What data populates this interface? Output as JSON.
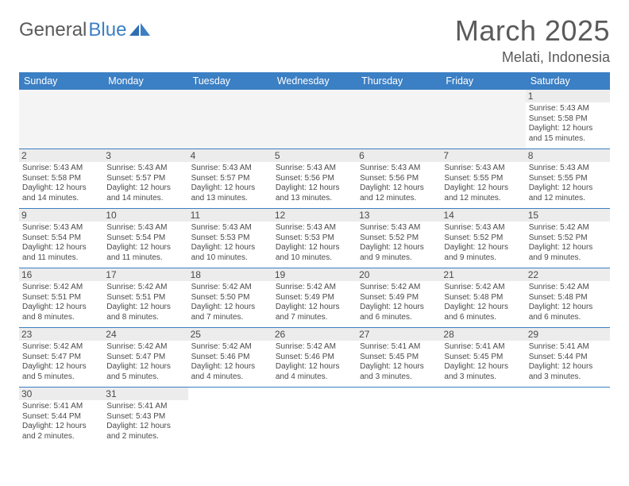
{
  "brand": {
    "general": "General",
    "blue": "Blue"
  },
  "header": {
    "month_title": "March 2025",
    "location": "Melati, Indonesia"
  },
  "colors": {
    "header_bar": "#3b7fc4",
    "header_text": "#ffffff",
    "daynum_bg": "#ececec",
    "cell_border": "#3b7fc4",
    "body_text": "#4a4a4a",
    "lead_empty_bg": "#f4f4f4"
  },
  "dayHeaders": [
    "Sunday",
    "Monday",
    "Tuesday",
    "Wednesday",
    "Thursday",
    "Friday",
    "Saturday"
  ],
  "weeks": [
    [
      {
        "empty": true,
        "lead": true
      },
      {
        "empty": true,
        "lead": true
      },
      {
        "empty": true,
        "lead": true
      },
      {
        "empty": true,
        "lead": true
      },
      {
        "empty": true,
        "lead": true
      },
      {
        "empty": true,
        "lead": true
      },
      {
        "day": "1",
        "sunrise": "Sunrise: 5:43 AM",
        "sunset": "Sunset: 5:58 PM",
        "daylight1": "Daylight: 12 hours",
        "daylight2": "and 15 minutes."
      }
    ],
    [
      {
        "day": "2",
        "sunrise": "Sunrise: 5:43 AM",
        "sunset": "Sunset: 5:58 PM",
        "daylight1": "Daylight: 12 hours",
        "daylight2": "and 14 minutes."
      },
      {
        "day": "3",
        "sunrise": "Sunrise: 5:43 AM",
        "sunset": "Sunset: 5:57 PM",
        "daylight1": "Daylight: 12 hours",
        "daylight2": "and 14 minutes."
      },
      {
        "day": "4",
        "sunrise": "Sunrise: 5:43 AM",
        "sunset": "Sunset: 5:57 PM",
        "daylight1": "Daylight: 12 hours",
        "daylight2": "and 13 minutes."
      },
      {
        "day": "5",
        "sunrise": "Sunrise: 5:43 AM",
        "sunset": "Sunset: 5:56 PM",
        "daylight1": "Daylight: 12 hours",
        "daylight2": "and 13 minutes."
      },
      {
        "day": "6",
        "sunrise": "Sunrise: 5:43 AM",
        "sunset": "Sunset: 5:56 PM",
        "daylight1": "Daylight: 12 hours",
        "daylight2": "and 12 minutes."
      },
      {
        "day": "7",
        "sunrise": "Sunrise: 5:43 AM",
        "sunset": "Sunset: 5:55 PM",
        "daylight1": "Daylight: 12 hours",
        "daylight2": "and 12 minutes."
      },
      {
        "day": "8",
        "sunrise": "Sunrise: 5:43 AM",
        "sunset": "Sunset: 5:55 PM",
        "daylight1": "Daylight: 12 hours",
        "daylight2": "and 12 minutes."
      }
    ],
    [
      {
        "day": "9",
        "sunrise": "Sunrise: 5:43 AM",
        "sunset": "Sunset: 5:54 PM",
        "daylight1": "Daylight: 12 hours",
        "daylight2": "and 11 minutes."
      },
      {
        "day": "10",
        "sunrise": "Sunrise: 5:43 AM",
        "sunset": "Sunset: 5:54 PM",
        "daylight1": "Daylight: 12 hours",
        "daylight2": "and 11 minutes."
      },
      {
        "day": "11",
        "sunrise": "Sunrise: 5:43 AM",
        "sunset": "Sunset: 5:53 PM",
        "daylight1": "Daylight: 12 hours",
        "daylight2": "and 10 minutes."
      },
      {
        "day": "12",
        "sunrise": "Sunrise: 5:43 AM",
        "sunset": "Sunset: 5:53 PM",
        "daylight1": "Daylight: 12 hours",
        "daylight2": "and 10 minutes."
      },
      {
        "day": "13",
        "sunrise": "Sunrise: 5:43 AM",
        "sunset": "Sunset: 5:52 PM",
        "daylight1": "Daylight: 12 hours",
        "daylight2": "and 9 minutes."
      },
      {
        "day": "14",
        "sunrise": "Sunrise: 5:43 AM",
        "sunset": "Sunset: 5:52 PM",
        "daylight1": "Daylight: 12 hours",
        "daylight2": "and 9 minutes."
      },
      {
        "day": "15",
        "sunrise": "Sunrise: 5:42 AM",
        "sunset": "Sunset: 5:52 PM",
        "daylight1": "Daylight: 12 hours",
        "daylight2": "and 9 minutes."
      }
    ],
    [
      {
        "day": "16",
        "sunrise": "Sunrise: 5:42 AM",
        "sunset": "Sunset: 5:51 PM",
        "daylight1": "Daylight: 12 hours",
        "daylight2": "and 8 minutes."
      },
      {
        "day": "17",
        "sunrise": "Sunrise: 5:42 AM",
        "sunset": "Sunset: 5:51 PM",
        "daylight1": "Daylight: 12 hours",
        "daylight2": "and 8 minutes."
      },
      {
        "day": "18",
        "sunrise": "Sunrise: 5:42 AM",
        "sunset": "Sunset: 5:50 PM",
        "daylight1": "Daylight: 12 hours",
        "daylight2": "and 7 minutes."
      },
      {
        "day": "19",
        "sunrise": "Sunrise: 5:42 AM",
        "sunset": "Sunset: 5:49 PM",
        "daylight1": "Daylight: 12 hours",
        "daylight2": "and 7 minutes."
      },
      {
        "day": "20",
        "sunrise": "Sunrise: 5:42 AM",
        "sunset": "Sunset: 5:49 PM",
        "daylight1": "Daylight: 12 hours",
        "daylight2": "and 6 minutes."
      },
      {
        "day": "21",
        "sunrise": "Sunrise: 5:42 AM",
        "sunset": "Sunset: 5:48 PM",
        "daylight1": "Daylight: 12 hours",
        "daylight2": "and 6 minutes."
      },
      {
        "day": "22",
        "sunrise": "Sunrise: 5:42 AM",
        "sunset": "Sunset: 5:48 PM",
        "daylight1": "Daylight: 12 hours",
        "daylight2": "and 6 minutes."
      }
    ],
    [
      {
        "day": "23",
        "sunrise": "Sunrise: 5:42 AM",
        "sunset": "Sunset: 5:47 PM",
        "daylight1": "Daylight: 12 hours",
        "daylight2": "and 5 minutes."
      },
      {
        "day": "24",
        "sunrise": "Sunrise: 5:42 AM",
        "sunset": "Sunset: 5:47 PM",
        "daylight1": "Daylight: 12 hours",
        "daylight2": "and 5 minutes."
      },
      {
        "day": "25",
        "sunrise": "Sunrise: 5:42 AM",
        "sunset": "Sunset: 5:46 PM",
        "daylight1": "Daylight: 12 hours",
        "daylight2": "and 4 minutes."
      },
      {
        "day": "26",
        "sunrise": "Sunrise: 5:42 AM",
        "sunset": "Sunset: 5:46 PM",
        "daylight1": "Daylight: 12 hours",
        "daylight2": "and 4 minutes."
      },
      {
        "day": "27",
        "sunrise": "Sunrise: 5:41 AM",
        "sunset": "Sunset: 5:45 PM",
        "daylight1": "Daylight: 12 hours",
        "daylight2": "and 3 minutes."
      },
      {
        "day": "28",
        "sunrise": "Sunrise: 5:41 AM",
        "sunset": "Sunset: 5:45 PM",
        "daylight1": "Daylight: 12 hours",
        "daylight2": "and 3 minutes."
      },
      {
        "day": "29",
        "sunrise": "Sunrise: 5:41 AM",
        "sunset": "Sunset: 5:44 PM",
        "daylight1": "Daylight: 12 hours",
        "daylight2": "and 3 minutes."
      }
    ],
    [
      {
        "day": "30",
        "sunrise": "Sunrise: 5:41 AM",
        "sunset": "Sunset: 5:44 PM",
        "daylight1": "Daylight: 12 hours",
        "daylight2": "and 2 minutes."
      },
      {
        "day": "31",
        "sunrise": "Sunrise: 5:41 AM",
        "sunset": "Sunset: 5:43 PM",
        "daylight1": "Daylight: 12 hours",
        "daylight2": "and 2 minutes."
      },
      {
        "empty": true
      },
      {
        "empty": true
      },
      {
        "empty": true
      },
      {
        "empty": true
      },
      {
        "empty": true
      }
    ]
  ]
}
